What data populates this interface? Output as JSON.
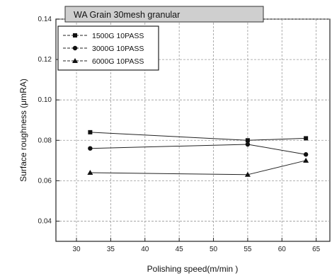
{
  "chart_data": {
    "type": "line",
    "title": "WA Grain  30mesh granular",
    "xlabel": "Polishing speed(m/min )",
    "ylabel": "Surface roughness (μmRA)",
    "xlim": [
      27,
      67
    ],
    "ylim": [
      0.03,
      0.14
    ],
    "x_ticks": [
      "30",
      "35",
      "40",
      "45",
      "50",
      "55",
      "60",
      "65"
    ],
    "y_ticks": [
      "0.04",
      "0.06",
      "0.08",
      "0.10",
      "0.12",
      "0.14"
    ],
    "grid": true,
    "legend_position": "top-left",
    "x": [
      32,
      55,
      63.5
    ],
    "series": [
      {
        "name": "1500G  10PASS",
        "marker": "square",
        "values": [
          0.084,
          0.08,
          0.081
        ]
      },
      {
        "name": "3000G  10PASS",
        "marker": "circle",
        "values": [
          0.076,
          0.078,
          0.073
        ]
      },
      {
        "name": "6000G  10PASS",
        "marker": "triangle",
        "values": [
          0.064,
          0.063,
          0.07
        ]
      }
    ]
  }
}
